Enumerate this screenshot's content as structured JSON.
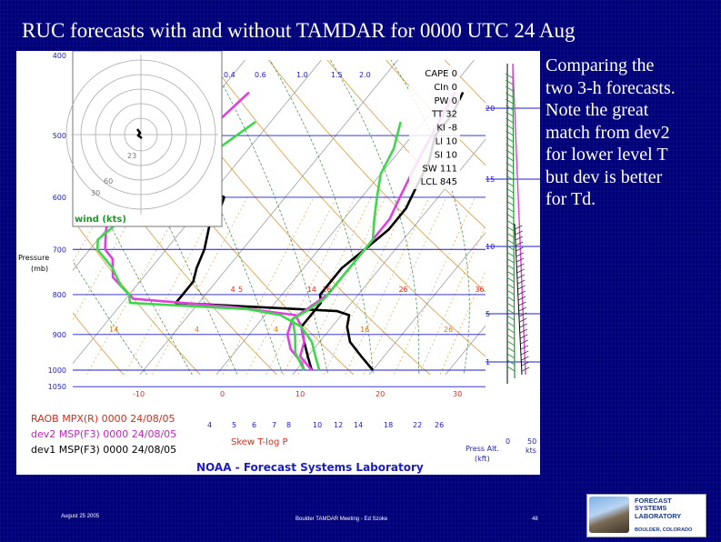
{
  "slide": {
    "title": "RUC forecasts with and without TAMDAR for 0000 UTC 24 Aug",
    "note_lines": [
      "Comparing the",
      "two 3-h forecasts.",
      "Note the great",
      "match from dev2",
      "for lower level T",
      "but dev is better",
      "for Td."
    ],
    "footer_left": "August 25 2005",
    "footer_center": "Boulder TAMDAR Meeting - Ed Szoke",
    "footer_page": "48",
    "logo_name_lines": [
      "FORECAST",
      "SYSTEMS",
      "LABORATORY"
    ],
    "logo_place": "BOULDER, COLORADO"
  },
  "colors": {
    "raob": "#000000",
    "dev2": "#e040e0",
    "dev1": "#3dd84a",
    "isobar": "#1c1cc8",
    "isotherm": "#9aa0a6",
    "dry_adiabat": "#d99a3c",
    "moist_adiabat": "#3a8a46",
    "mixing_ratio": "#d99a3c",
    "label_blue": "#1c1cc8",
    "label_orange": "#e07818",
    "label_red": "#e02818",
    "label_magenta": "#c025c0",
    "wind_green": "#1c9a2c"
  },
  "chart_data": {
    "type": "line",
    "title": "",
    "subtitle": "Skew T-log P",
    "footer_title": "NOAA - Forecast Systems Laboratory",
    "y_axis": {
      "label_lines": [
        "Pressure",
        "(mb)"
      ],
      "top_label": "400",
      "ticks": [
        {
          "p": 500,
          "label": "500"
        },
        {
          "p": 600,
          "label": "600"
        },
        {
          "p": 700,
          "label": "700"
        },
        {
          "p": 800,
          "label": "800"
        },
        {
          "p": 900,
          "label": "900"
        },
        {
          "p": 1000,
          "label": "1000"
        },
        {
          "p": 1050,
          "label": "1050"
        }
      ],
      "range": [
        400,
        1050
      ],
      "scale": "log"
    },
    "x_axis": {
      "temp_ticks": [
        {
          "t": -10,
          "label": "-10"
        },
        {
          "t": 0,
          "label": "0"
        },
        {
          "t": 10,
          "label": "10"
        },
        {
          "t": 20,
          "label": "20"
        },
        {
          "t": 30,
          "label": "30"
        }
      ],
      "mixing_ratio_labels": [
        "4",
        "5",
        "6",
        "7",
        "8",
        "10",
        "12",
        "14",
        "18",
        "22",
        "26"
      ],
      "top_mixing_ratio_labels": [
        "0.4",
        "0.6",
        "1.0",
        "1.5",
        "2.0"
      ]
    },
    "theta_e_labels": [
      {
        "t": 14,
        "p": 800,
        "label": "14"
      },
      {
        "t": 4,
        "p": 800,
        "label": "4"
      },
      {
        "t": 5,
        "p": 800,
        "label": "5"
      },
      {
        "t": 16,
        "p": 800,
        "label": "16"
      },
      {
        "t": 26,
        "p": 800,
        "label": "26"
      },
      {
        "t": 36,
        "p": 800,
        "label": "36"
      }
    ],
    "mid_labels": [
      {
        "t": -4,
        "p": 900,
        "label": "14"
      },
      {
        "t": 4,
        "p": 900,
        "label": "4"
      },
      {
        "t": 12,
        "p": 900,
        "label": "4"
      },
      {
        "t": 20,
        "p": 900,
        "label": "16"
      },
      {
        "t": 28,
        "p": 900,
        "label": "26"
      }
    ],
    "indices": [
      {
        "name": "CAPE",
        "value": "0"
      },
      {
        "name": "CIn",
        "value": "0"
      },
      {
        "name": "PW",
        "value": "0"
      },
      {
        "name": "TT",
        "value": "32"
      },
      {
        "name": "KI",
        "value": "-8"
      },
      {
        "name": "LI",
        "value": "10"
      },
      {
        "name": "SI",
        "value": "10"
      },
      {
        "name": "SW",
        "value": "111"
      },
      {
        "name": "LCL",
        "value": "845"
      }
    ],
    "legend": [
      {
        "text": "RAOB MPX(R) 0000 24/08/05",
        "color": "#e02818"
      },
      {
        "text": "dev2 MSP(F3) 0000 24/08/05",
        "color": "#c025c0"
      },
      {
        "text": "dev1 MSP(F3) 0000 24/08/05",
        "color": "#000000"
      }
    ],
    "hodograph": {
      "label": "wind (kts)",
      "ring_labels": [
        "23",
        "60",
        "30"
      ]
    },
    "wind_column": {
      "heights": [
        {
          "km": 20,
          "label": "20"
        },
        {
          "km": 15,
          "label": "15"
        },
        {
          "km": 10,
          "label": "10"
        },
        {
          "km": 5,
          "label": "5"
        },
        {
          "km": 1,
          "label": "1"
        }
      ],
      "press_alt_label_lines": [
        "Press Alt.",
        "(kft)"
      ],
      "speed_labels": [
        {
          "value": "0"
        },
        {
          "value": "50",
          "unit": "kts"
        }
      ]
    },
    "series": [
      {
        "name": "RAOB MPX(R)",
        "kind": "temperature",
        "points": [
          [
            440,
            -33
          ],
          [
            470,
            -32
          ],
          [
            500,
            -32
          ],
          [
            520,
            -30
          ],
          [
            560,
            -27
          ],
          [
            600,
            -18
          ],
          [
            630,
            -17
          ],
          [
            650,
            -17
          ],
          [
            700,
            -15
          ],
          [
            740,
            -14
          ],
          [
            770,
            -13
          ],
          [
            800,
            -13
          ],
          [
            820,
            -13
          ],
          [
            840,
            9
          ],
          [
            850,
            11
          ],
          [
            880,
            12
          ],
          [
            920,
            14
          ],
          [
            960,
            17
          ],
          [
            1000,
            20
          ]
        ]
      },
      {
        "name": "RAOB MPX(R)",
        "kind": "dewpoint",
        "points": [
          [
            440,
            2
          ],
          [
            470,
            3
          ],
          [
            500,
            3
          ],
          [
            540,
            5
          ],
          [
            580,
            6
          ],
          [
            620,
            7
          ],
          [
            660,
            7
          ],
          [
            700,
            6
          ],
          [
            740,
            5
          ],
          [
            780,
            5
          ],
          [
            800,
            5
          ],
          [
            820,
            6
          ],
          [
            840,
            6
          ],
          [
            860,
            6
          ],
          [
            880,
            6
          ],
          [
            920,
            8
          ],
          [
            960,
            10
          ],
          [
            1000,
            12
          ]
        ]
      },
      {
        "name": "dev2 MSP(F3)",
        "kind": "temperature",
        "points": [
          [
            440,
            -26
          ],
          [
            480,
            -27
          ],
          [
            520,
            -27
          ],
          [
            560,
            -28
          ],
          [
            600,
            -28
          ],
          [
            640,
            -31
          ],
          [
            680,
            -29
          ],
          [
            700,
            -28
          ],
          [
            720,
            -26
          ],
          [
            760,
            -24
          ],
          [
            790,
            -21
          ],
          [
            810,
            -19
          ],
          [
            830,
            -5
          ],
          [
            850,
            4
          ],
          [
            880,
            6
          ],
          [
            920,
            8
          ],
          [
            960,
            9
          ],
          [
            1000,
            12
          ]
        ]
      },
      {
        "name": "dev2 MSP(F3)",
        "kind": "dewpoint",
        "points": [
          [
            440,
            1
          ],
          [
            480,
            2
          ],
          [
            520,
            3
          ],
          [
            560,
            4
          ],
          [
            600,
            5
          ],
          [
            640,
            6
          ],
          [
            680,
            6
          ],
          [
            700,
            6
          ],
          [
            740,
            6
          ],
          [
            780,
            6
          ],
          [
            800,
            6
          ],
          [
            830,
            5
          ],
          [
            860,
            4
          ],
          [
            900,
            5
          ],
          [
            940,
            7
          ],
          [
            980,
            10
          ],
          [
            1000,
            11
          ]
        ]
      },
      {
        "name": "dev1 MSP(F3)",
        "kind": "temperature",
        "points": [
          [
            480,
            -22
          ],
          [
            520,
            -24
          ],
          [
            560,
            -26
          ],
          [
            600,
            -28
          ],
          [
            640,
            -29
          ],
          [
            680,
            -30
          ],
          [
            700,
            -29
          ],
          [
            740,
            -25
          ],
          [
            780,
            -22
          ],
          [
            800,
            -20
          ],
          [
            820,
            -19
          ],
          [
            835,
            -3
          ],
          [
            850,
            2
          ],
          [
            880,
            6
          ],
          [
            920,
            9
          ],
          [
            960,
            11
          ],
          [
            1000,
            13
          ]
        ]
      },
      {
        "name": "dev1 MSP(F3)",
        "kind": "dewpoint",
        "points": [
          [
            480,
            -3
          ],
          [
            520,
            -1
          ],
          [
            560,
            0
          ],
          [
            600,
            2
          ],
          [
            640,
            4
          ],
          [
            680,
            6
          ],
          [
            700,
            6
          ],
          [
            740,
            6
          ],
          [
            780,
            6
          ],
          [
            810,
            6
          ],
          [
            840,
            5
          ],
          [
            860,
            4
          ],
          [
            900,
            6
          ],
          [
            950,
            8
          ],
          [
            1000,
            11
          ]
        ]
      }
    ]
  }
}
